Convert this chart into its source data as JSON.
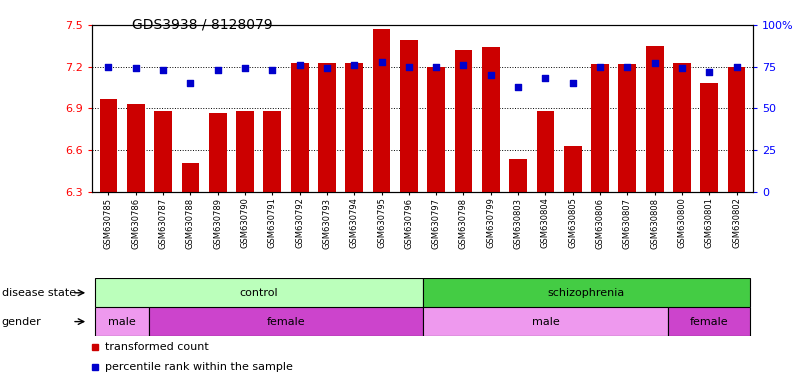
{
  "title": "GDS3938 / 8128079",
  "samples": [
    "GSM630785",
    "GSM630786",
    "GSM630787",
    "GSM630788",
    "GSM630789",
    "GSM630790",
    "GSM630791",
    "GSM630792",
    "GSM630793",
    "GSM630794",
    "GSM630795",
    "GSM630796",
    "GSM630797",
    "GSM630798",
    "GSM630799",
    "GSM630803",
    "GSM630804",
    "GSM630805",
    "GSM630806",
    "GSM630807",
    "GSM630808",
    "GSM630800",
    "GSM630801",
    "GSM630802"
  ],
  "bar_values": [
    6.97,
    6.93,
    6.88,
    6.51,
    6.87,
    6.88,
    6.88,
    7.23,
    7.23,
    7.23,
    7.47,
    7.39,
    7.2,
    7.32,
    7.34,
    6.54,
    6.88,
    6.63,
    7.22,
    7.22,
    7.35,
    7.23,
    7.08,
    7.2
  ],
  "percentile_values": [
    75,
    74,
    73,
    65,
    73,
    74,
    73,
    76,
    74,
    76,
    78,
    75,
    75,
    76,
    70,
    63,
    68,
    65,
    75,
    75,
    77,
    74,
    72,
    75
  ],
  "ylim_left": [
    6.3,
    7.5
  ],
  "ylim_right": [
    0,
    100
  ],
  "yticks_left": [
    6.3,
    6.6,
    6.9,
    7.2,
    7.5
  ],
  "ytick_labels_left": [
    "6.3",
    "6.6",
    "6.9",
    "7.2",
    "7.5"
  ],
  "yticks_right": [
    0,
    25,
    50,
    75,
    100
  ],
  "ytick_labels_right": [
    "0",
    "25",
    "50",
    "75",
    "100%"
  ],
  "bar_color": "#cc0000",
  "dot_color": "#0000cc",
  "gridline_y": [
    7.2,
    6.9,
    6.6
  ],
  "disease_state_groups": [
    {
      "label": "control",
      "start": 0,
      "end": 11,
      "color": "#bbffbb"
    },
    {
      "label": "schizophrenia",
      "start": 12,
      "end": 23,
      "color": "#44cc44"
    }
  ],
  "gender_groups": [
    {
      "label": "male",
      "start": 0,
      "end": 1,
      "color": "#ee99ee"
    },
    {
      "label": "female",
      "start": 2,
      "end": 11,
      "color": "#cc44cc"
    },
    {
      "label": "male",
      "start": 12,
      "end": 20,
      "color": "#ee99ee"
    },
    {
      "label": "female",
      "start": 21,
      "end": 23,
      "color": "#cc44cc"
    }
  ],
  "legend_items": [
    {
      "label": "transformed count",
      "color": "#cc0000"
    },
    {
      "label": "percentile rank within the sample",
      "color": "#0000cc"
    }
  ],
  "bar_width": 0.65,
  "base_value": 6.3,
  "n_samples": 24
}
